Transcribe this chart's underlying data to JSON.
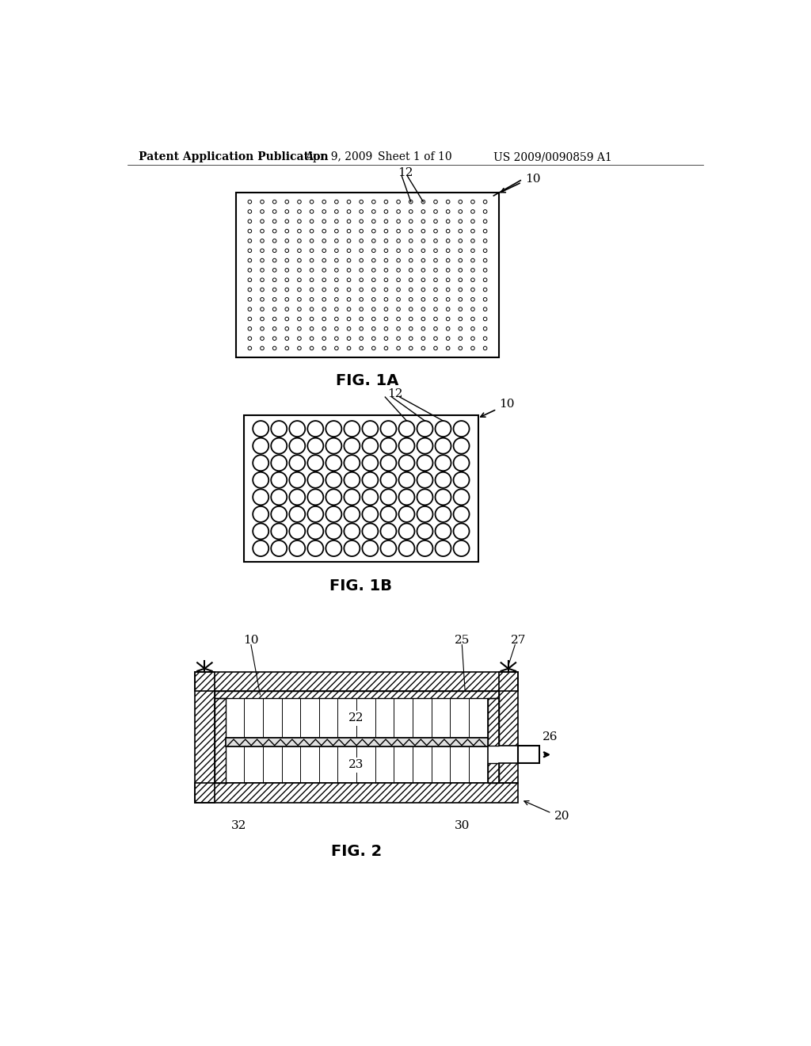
{
  "bg_color": "#ffffff",
  "header_text": "Patent Application Publication",
  "header_date": "Apr. 9, 2009",
  "header_sheet": "Sheet 1 of 10",
  "header_patent": "US 2009/0090859 A1",
  "fig1a_label": "FIG. 1A",
  "fig1b_label": "FIG. 1B",
  "fig2_label": "FIG. 2",
  "label_10_1a": "10",
  "label_12_1a": "12",
  "label_10_1b": "10",
  "label_12_1b": "12",
  "label_10_2": "10",
  "label_20_2": "20",
  "label_22_2": "22",
  "label_23_2": "23",
  "label_25_2": "25",
  "label_26_2": "26",
  "label_27_2": "27",
  "label_30_2": "30",
  "label_32_2": "32",
  "fig1a_rows": 16,
  "fig1a_cols": 20,
  "fig1b_rows": 8,
  "fig1b_cols": 12
}
